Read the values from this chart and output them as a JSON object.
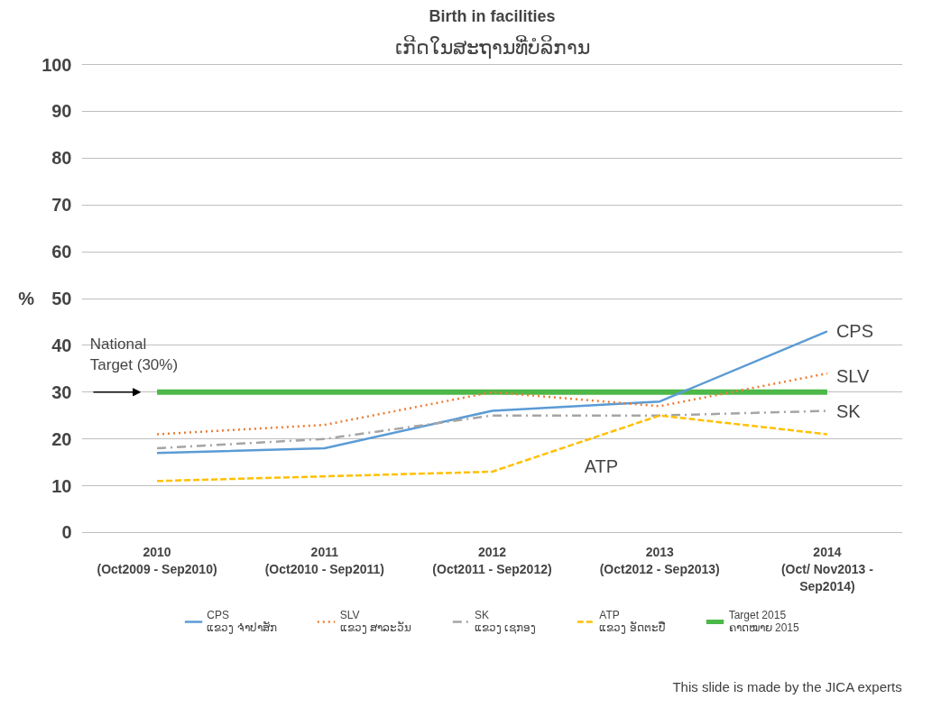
{
  "chart_data": {
    "type": "line",
    "title": "Birth in facilities",
    "subtitle": "ເກີດໃນສະຖານທີ່ບໍລິການ",
    "ylabel": "%",
    "categories": [
      "2010\n(Oct2009 - Sep2010)",
      "2011\n(Oct2010 - Sep2011)",
      "2012\n(Oct2011 - Sep2012)",
      "2013\n(Oct2012 - Sep2013)",
      "2014\n(Oct/ Nov2013 -\nSep2014)"
    ],
    "series": [
      {
        "name": "CPS\nແຂວງ ຈຳປາສັກ",
        "color": "#5b9bd5",
        "line_style": "solid",
        "values": [
          17,
          18,
          26,
          28,
          43
        ]
      },
      {
        "name": "SLV\nແຂວງ ສາລະວັນ",
        "color": "#ed7d31",
        "line_style": "dotted",
        "values": [
          21,
          23,
          30,
          27,
          34
        ]
      },
      {
        "name": "SK\nແຂວງ ເຊກອງ",
        "color": "#a5a5a5",
        "line_style": "dashdot",
        "values": [
          18,
          20,
          25,
          25,
          26
        ]
      },
      {
        "name": "ATP\nແຂວງ ອັດຕະປື",
        "color": "#ffc000",
        "line_style": "dashed",
        "values": [
          11,
          12,
          13,
          25,
          21
        ]
      },
      {
        "name": "Target 2015\nຄາດໝາຍ 2015",
        "color": "#4cb848",
        "line_style": "solid",
        "values": [
          30,
          30,
          30,
          30,
          30
        ]
      }
    ],
    "ylim": [
      0,
      100
    ],
    "yticks": [
      0,
      10,
      20,
      30,
      40,
      50,
      60,
      70,
      80,
      90,
      100
    ],
    "grid": "y",
    "legend": "bottom",
    "annotations": [
      {
        "text": "CPS",
        "x": "2014\n(Oct/ Nov2013 -\nSep2014)",
        "y": 43
      },
      {
        "text": "SLV",
        "x": "2014\n(Oct/ Nov2013 -\nSep2014)",
        "y": 33.5
      },
      {
        "text": "SK",
        "x": "2014\n(Oct/ Nov2013 -\nSep2014)",
        "y": 26
      },
      "ATP",
      "National\nTarget (30%)",
      "This slide is made by the JICA experts"
    ]
  }
}
